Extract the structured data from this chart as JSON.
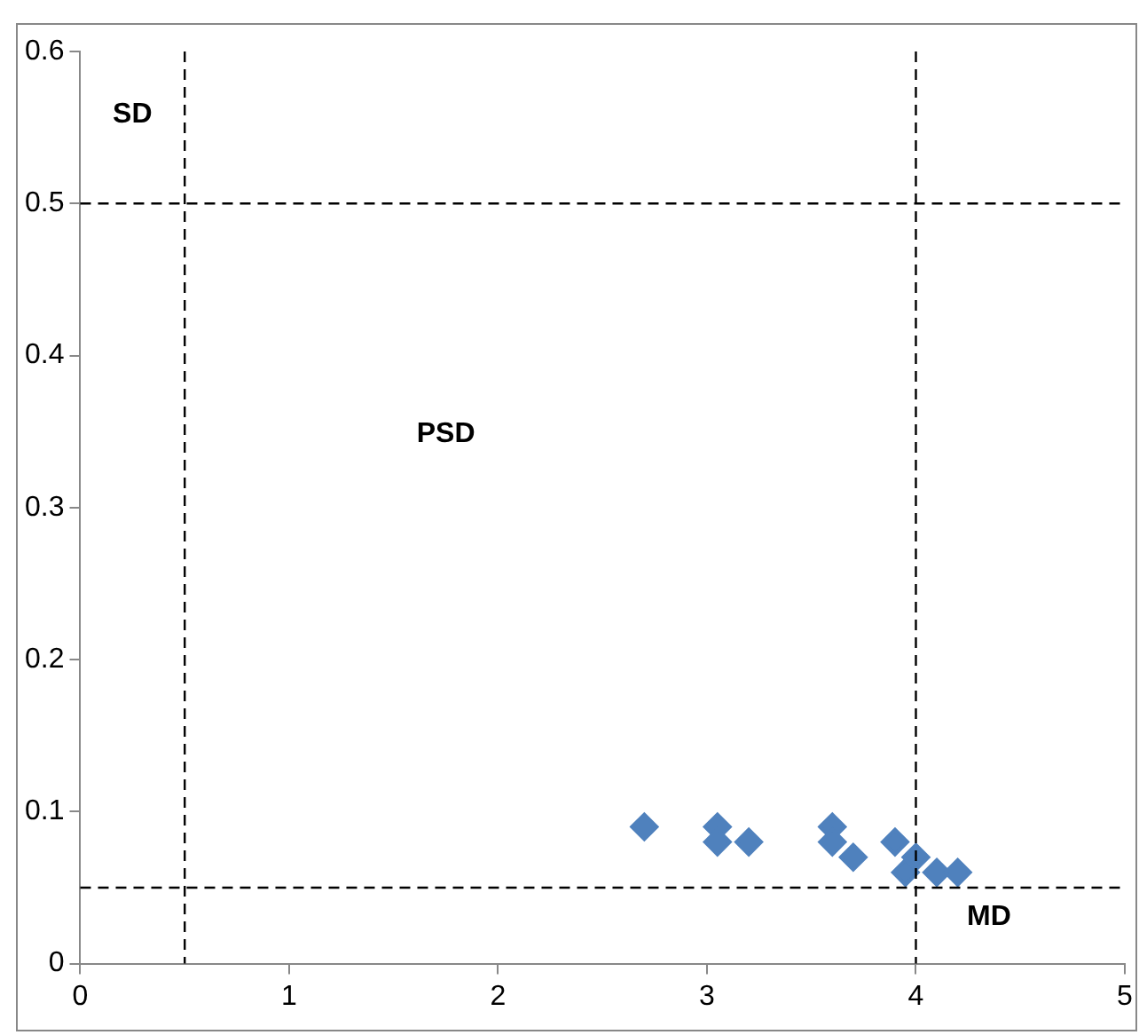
{
  "chart_data": {
    "type": "scatter",
    "series": [
      {
        "color": "#4f81bd",
        "x": [
          2.7,
          3.05,
          3.05,
          3.2,
          3.6,
          3.6,
          3.7,
          3.9,
          3.95,
          4.0,
          4.1,
          4.2
        ],
        "values": [
          0.09,
          0.09,
          0.08,
          0.08,
          0.09,
          0.08,
          0.07,
          0.08,
          0.06,
          0.07,
          0.06,
          0.06
        ]
      }
    ],
    "xlim": [
      0,
      5
    ],
    "xticks": [
      0,
      1,
      2,
      3,
      4,
      5
    ],
    "ylim": [
      0,
      0.6
    ],
    "yticks": [
      0,
      0.1,
      0.2,
      0.3,
      0.4,
      0.5,
      0.6
    ],
    "marker": "diamond",
    "grid": false,
    "legend": false,
    "ref_lines": [
      {
        "axis": "x",
        "value": 0.5,
        "color": "#000000",
        "line_style": "dashed"
      },
      {
        "axis": "x",
        "value": 4,
        "color": "#000000",
        "line_style": "dashed"
      },
      {
        "axis": "y",
        "value": 0.5,
        "color": "#000000",
        "line_style": "dashed"
      },
      {
        "axis": "y",
        "value": 0.05,
        "color": "#000000",
        "line_style": "dashed"
      }
    ],
    "annotations": [
      "SD",
      "PSD",
      "MD"
    ]
  }
}
